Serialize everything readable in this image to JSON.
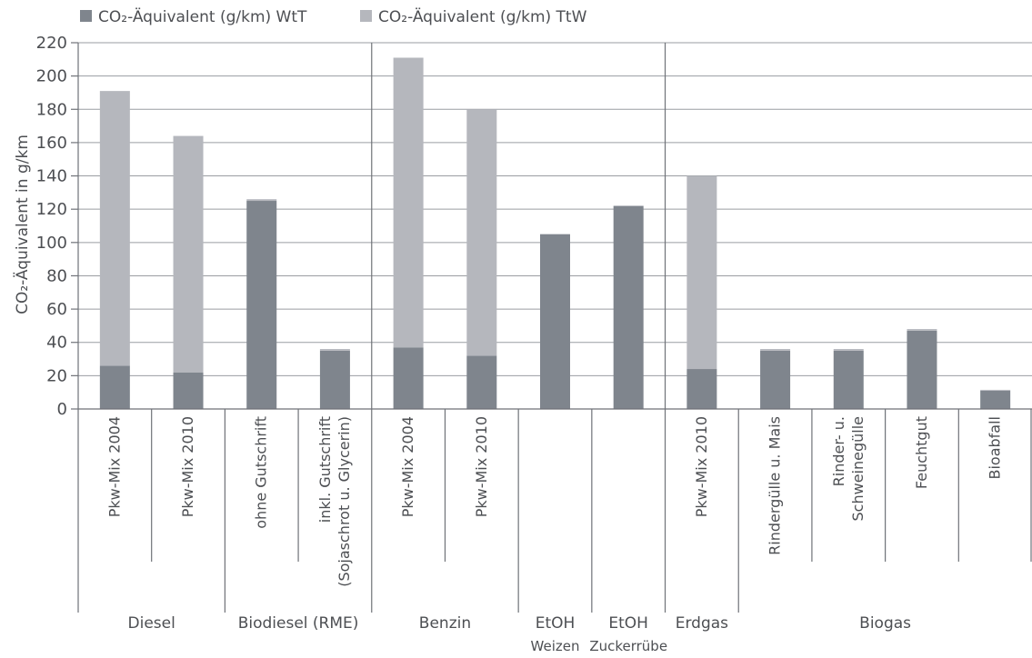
{
  "chart_data": {
    "type": "bar",
    "stacked": true,
    "ylabel": "CO₂-Äquivalent in g/km",
    "ylim": [
      0,
      220
    ],
    "yticks": [
      0,
      20,
      40,
      60,
      80,
      100,
      120,
      140,
      160,
      180,
      200,
      220
    ],
    "grid": true,
    "legend_position": "top-left",
    "series": [
      {
        "name": "CO₂-Äquivalent (g/km) WtT",
        "color": "#7f858d",
        "values": [
          26,
          22,
          125,
          35,
          37,
          32,
          105,
          122,
          24,
          35,
          35,
          47,
          11
        ]
      },
      {
        "name": "CO₂-Äquivalent (g/km) TtW",
        "color": "#b5b7bd",
        "values": [
          165,
          142,
          1,
          1,
          174,
          148,
          0,
          0,
          116,
          1,
          1,
          1,
          0.5
        ]
      }
    ],
    "categories": [
      "Pkw-Mix 2004",
      "Pkw-Mix 2010",
      "ohne Gutschrift",
      "inkl. Gutschrift (Sojaschrot u. Glycerin)",
      "Pkw-Mix 2004",
      "Pkw-Mix 2010",
      "",
      "",
      "Pkw-Mix 2010",
      "Rindergülle u. Mais",
      "Rinder- u. Schweinegülle",
      "Feuchtgut",
      "Bioabfall"
    ],
    "category_lines": [
      [
        "Pkw-Mix 2004"
      ],
      [
        "Pkw-Mix 2010"
      ],
      [
        "ohne Gutschrift"
      ],
      [
        "inkl. Gutschrift",
        "(Sojaschrot u. Glycerin)"
      ],
      [
        "Pkw-Mix 2004"
      ],
      [
        "Pkw-Mix 2010"
      ],
      [],
      [],
      [
        "Pkw-Mix 2010"
      ],
      [
        "Rindergülle u. Mais"
      ],
      [
        "Rinder- u.",
        "Schweinegülle"
      ],
      [
        "Feuchtgut"
      ],
      [
        "Bioabfall"
      ]
    ],
    "groups": [
      {
        "label": "Diesel",
        "sublabel": "",
        "start": 0,
        "end": 1
      },
      {
        "label": "Biodiesel (RME)",
        "sublabel": "",
        "start": 2,
        "end": 3
      },
      {
        "label": "Benzin",
        "sublabel": "",
        "start": 4,
        "end": 5
      },
      {
        "label": "EtOH",
        "sublabel": "Weizen",
        "start": 6,
        "end": 6
      },
      {
        "label": "EtOH",
        "sublabel": "Zuckerrübe",
        "start": 7,
        "end": 7
      },
      {
        "label": "Erdgas",
        "sublabel": "",
        "start": 8,
        "end": 8
      },
      {
        "label": "Biogas",
        "sublabel": "",
        "start": 9,
        "end": 12
      }
    ],
    "major_separators_after": [
      3,
      7
    ]
  }
}
